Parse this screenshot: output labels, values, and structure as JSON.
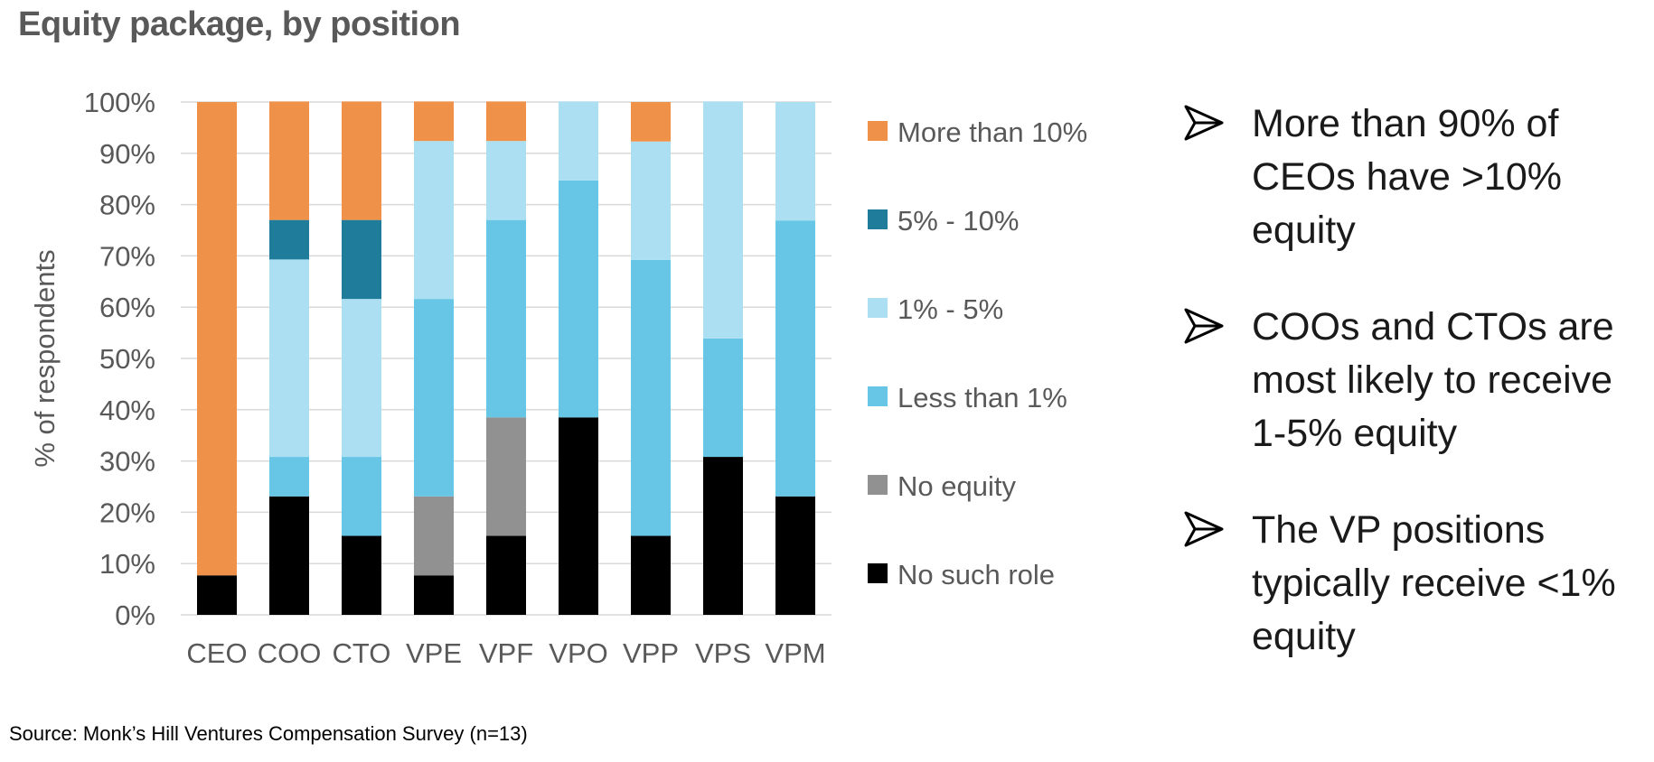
{
  "title": "Equity package, by position",
  "source": "Source: Monk’s Hill Ventures Compensation Survey (n=13)",
  "bullets": [
    "More than 90% of CEOs have >10% equity",
    "COOs and CTOs are most likely to receive 1-5% equity",
    "The VP positions typically receive <1% equity"
  ],
  "chart_data": {
    "type": "bar",
    "stacked": true,
    "ylabel": "% of respondents",
    "xlabel": "",
    "ylim": [
      0,
      100
    ],
    "yticks": [
      "0%",
      "10%",
      "20%",
      "30%",
      "40%",
      "50%",
      "60%",
      "70%",
      "80%",
      "90%",
      "100%"
    ],
    "grid": true,
    "legend_position": "right",
    "categories": [
      "CEO",
      "COO",
      "CTO",
      "VPE",
      "VPF",
      "VPO",
      "VPP",
      "VPS",
      "VPM"
    ],
    "series": [
      {
        "name": "No such role",
        "color": "#000000",
        "values": [
          7.7,
          23.1,
          15.4,
          7.7,
          15.4,
          38.5,
          15.4,
          30.8,
          23.1
        ]
      },
      {
        "name": "No equity",
        "color": "#919191",
        "values": [
          0,
          0,
          0,
          15.4,
          23.1,
          0,
          0,
          0,
          0
        ]
      },
      {
        "name": "Less than 1%",
        "color": "#67c5e6",
        "values": [
          0,
          7.7,
          15.4,
          38.5,
          38.5,
          46.2,
          53.8,
          23.1,
          53.8
        ]
      },
      {
        "name": "1% - 5%",
        "color": "#acdff1",
        "values": [
          0,
          38.5,
          30.8,
          30.8,
          15.4,
          15.4,
          23.1,
          46.2,
          23.1
        ]
      },
      {
        "name": "5% - 10%",
        "color": "#1f7c9b",
        "values": [
          0,
          7.7,
          15.4,
          0,
          0,
          0,
          0,
          0,
          0
        ]
      },
      {
        "name": "More than 10%",
        "color": "#f0914a",
        "values": [
          92.3,
          23.1,
          23.1,
          7.7,
          7.7,
          0,
          7.7,
          0,
          0
        ]
      }
    ],
    "legend_order": [
      "More than 10%",
      "5% - 10%",
      "1% - 5%",
      "Less than 1%",
      "No equity",
      "No such role"
    ]
  }
}
